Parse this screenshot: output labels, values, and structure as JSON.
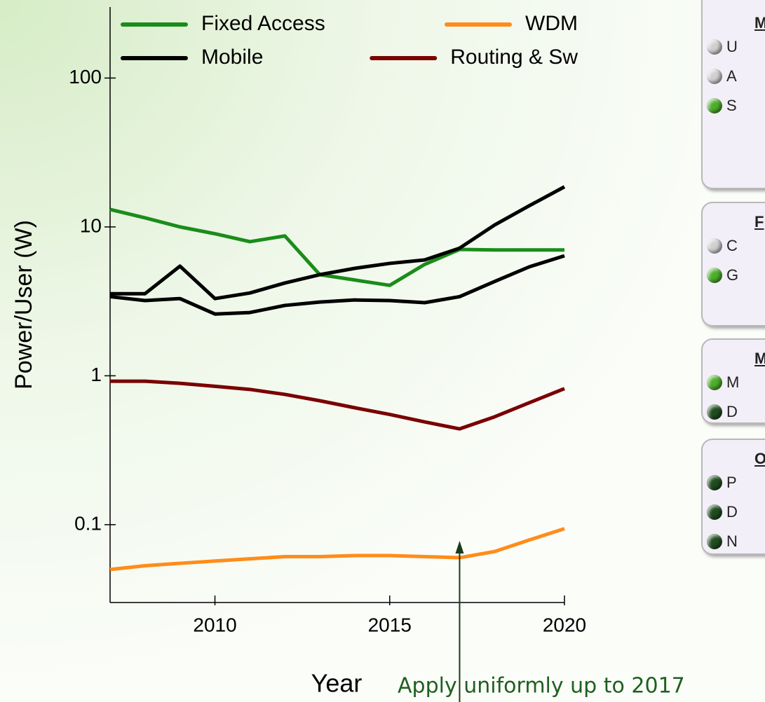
{
  "chart_data": {
    "type": "line",
    "x": [
      2007,
      2008,
      2009,
      2010,
      2011,
      2012,
      2013,
      2014,
      2015,
      2016,
      2017,
      2018,
      2019,
      2020
    ],
    "xlim": [
      2007,
      2020
    ],
    "xticks": [
      2010,
      2015,
      2020
    ],
    "ylim": [
      0.03,
      300
    ],
    "yticks": [
      0.1,
      1,
      10,
      100
    ],
    "log_y": true,
    "xlabel": "Year",
    "ylabel": "Power/User (W)",
    "annotation": {
      "text": "Apply uniformly up to 2017",
      "x": 2017,
      "color": "#1f5f1f"
    },
    "series": [
      {
        "name": "Fixed Access",
        "color": "#1a8c1a",
        "values": [
          13.1,
          11.5,
          10,
          9.0,
          7.96,
          8.7,
          4.78,
          4.4,
          4.05,
          5.6,
          7.06,
          7.0,
          7.0,
          7.0
        ]
      },
      {
        "name": "Mobile",
        "color": "#000000",
        "values": [
          [
            3.56,
            3.56,
            5.45,
            3.3,
            3.6,
            4.2,
            4.78,
            5.27,
            5.69,
            6.0,
            7.2,
            10.3,
            13.9,
            18.6
          ],
          [
            3.4,
            3.2,
            3.3,
            2.6,
            2.66,
            2.97,
            3.13,
            3.23,
            3.2,
            3.1,
            3.4,
            4.3,
            5.4,
            6.4
          ]
        ]
      },
      {
        "name": "WDM",
        "color": "#ff8c1a",
        "values": [
          0.05,
          0.053,
          0.055,
          0.057,
          0.059,
          0.061,
          0.061,
          0.062,
          0.062,
          0.061,
          0.06,
          0.066,
          0.079,
          0.094
        ]
      },
      {
        "name": "Routing & Sw",
        "color": "#7a0000",
        "values": [
          0.92,
          0.92,
          0.89,
          0.85,
          0.81,
          0.75,
          0.68,
          0.61,
          0.55,
          0.49,
          0.44,
          0.53,
          0.66,
          0.82
        ]
      }
    ]
  },
  "panels": [
    {
      "heading": "M",
      "items": [
        {
          "label": "U",
          "color": "#d0d0d0"
        },
        {
          "label": "A",
          "color": "#d0d0d0"
        },
        {
          "label": "S",
          "color": "#4caf2a"
        }
      ]
    },
    {
      "heading": "F",
      "items": [
        {
          "label": "C",
          "color": "#d0d0d0"
        },
        {
          "label": "G",
          "color": "#4caf2a"
        }
      ]
    },
    {
      "heading": "M",
      "items": [
        {
          "label": "M",
          "color": "#4caf2a"
        },
        {
          "label": "D",
          "color": "#1f4d1f"
        }
      ]
    },
    {
      "heading": "O",
      "items": [
        {
          "label": "P",
          "color": "#1f4d1f"
        },
        {
          "label": "D",
          "color": "#1f4d1f"
        },
        {
          "label": "N",
          "color": "#1f4d1f"
        }
      ]
    }
  ]
}
